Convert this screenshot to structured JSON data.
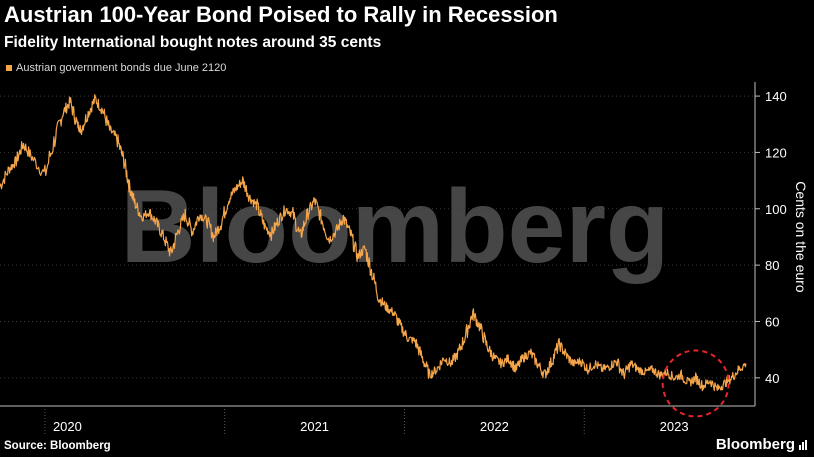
{
  "header": {
    "title": "Austrian 100-Year Bond Poised to Rally in Recession",
    "subtitle": "Fidelity International bought notes around 35 cents"
  },
  "footer": {
    "source": "Source: Bloomberg",
    "brand": "Bloomberg"
  },
  "watermark": "Bloomberg",
  "colors": {
    "series": "#f5a54a",
    "marker": "#e8242c",
    "grid": "#3a3a3a",
    "axis": "#bfbfbf"
  },
  "chart_data": {
    "type": "line",
    "title": "Austrian 100-Year Bond Poised to Rally in Recession",
    "subtitle": "Fidelity International bought notes around 35 cents",
    "ylabel": "Cents on the euro",
    "xlabel": "",
    "ylim": [
      30,
      145
    ],
    "yticks": [
      40,
      60,
      80,
      100,
      120,
      140
    ],
    "xlim": [
      2019.75,
      2023.95
    ],
    "xticks": [
      {
        "label": "2020",
        "at": 2020.0,
        "mid": 2020.125
      },
      {
        "label": "2021",
        "at": 2021.0,
        "mid": 2021.5
      },
      {
        "label": "2022",
        "at": 2022.0,
        "mid": 2022.5
      },
      {
        "label": "2023",
        "at": 2023.0,
        "mid": 2023.5
      }
    ],
    "grid": true,
    "legend_position": "top-left",
    "series": [
      {
        "name": "Austrian government bonds due June 2120",
        "x": [
          2019.75,
          2019.8,
          2019.84,
          2019.88,
          2019.93,
          2020.0,
          2020.06,
          2020.1,
          2020.14,
          2020.18,
          2020.2,
          2020.24,
          2020.28,
          2020.32,
          2020.36,
          2020.4,
          2020.44,
          2020.47,
          2020.5,
          2020.54,
          2020.58,
          2020.62,
          2020.66,
          2020.7,
          2020.74,
          2020.78,
          2020.82,
          2020.86,
          2020.9,
          2020.94,
          2020.98,
          2021.02,
          2021.06,
          2021.1,
          2021.14,
          2021.18,
          2021.22,
          2021.26,
          2021.3,
          2021.34,
          2021.38,
          2021.42,
          2021.46,
          2021.5,
          2021.54,
          2021.58,
          2021.62,
          2021.66,
          2021.7,
          2021.74,
          2021.78,
          2021.82,
          2021.86,
          2021.9,
          2021.94,
          2021.98,
          2022.02,
          2022.06,
          2022.1,
          2022.14,
          2022.18,
          2022.22,
          2022.26,
          2022.3,
          2022.34,
          2022.38,
          2022.42,
          2022.46,
          2022.5,
          2022.54,
          2022.58,
          2022.62,
          2022.66,
          2022.7,
          2022.74,
          2022.78,
          2022.82,
          2022.86,
          2022.9,
          2022.94,
          2022.98,
          2023.02,
          2023.06,
          2023.1,
          2023.14,
          2023.18,
          2023.22,
          2023.26,
          2023.3,
          2023.34,
          2023.38,
          2023.42,
          2023.46,
          2023.5,
          2023.54,
          2023.58,
          2023.62,
          2023.66,
          2023.7,
          2023.74,
          2023.78,
          2023.82,
          2023.86,
          2023.9
        ],
        "y": [
          108,
          114,
          117,
          123,
          118,
          112,
          126,
          134,
          138,
          130,
          128,
          134,
          139,
          135,
          128,
          125,
          117,
          108,
          102,
          97,
          99,
          95,
          90,
          84,
          92,
          98,
          92,
          98,
          96,
          90,
          95,
          103,
          107,
          110,
          104,
          101,
          94,
          91,
          96,
          100,
          98,
          90,
          98,
          103,
          96,
          89,
          92,
          97,
          91,
          83,
          86,
          77,
          68,
          65,
          63,
          58,
          54,
          53,
          47,
          41,
          43,
          47,
          45,
          49,
          55,
          63,
          58,
          51,
          47,
          45,
          47,
          43,
          47,
          49,
          45,
          41,
          46,
          52,
          48,
          45,
          46,
          43,
          45,
          43,
          44,
          46,
          41,
          45,
          43,
          42,
          43,
          41,
          42,
          40,
          41,
          38,
          40,
          37,
          39,
          36,
          38,
          40,
          43,
          45
        ]
      }
    ],
    "annotations": [
      {
        "type": "circle",
        "label": "",
        "center_x": 2023.62,
        "center_y": 38
      }
    ]
  }
}
